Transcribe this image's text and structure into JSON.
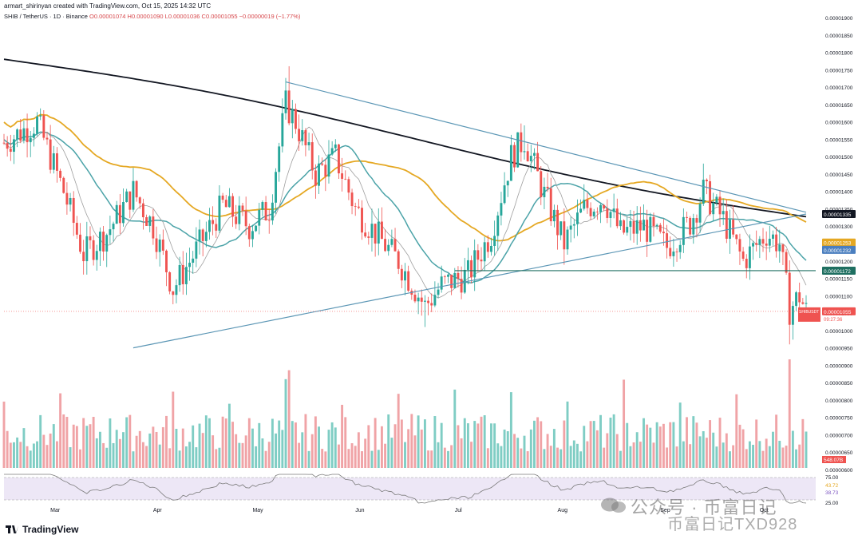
{
  "header": {
    "caption": "armart_shirinyan created with TradingView.com, Oct 15, 2025 14:32 UTC"
  },
  "legend": {
    "symbol": "SHIB / TetherUS · 1D · Binance",
    "ohlc": "O0.00001074 H0.00001090 L0.00001036 C0.00001055 −0.00000019 (−1.77%)"
  },
  "brand": {
    "name": "TradingView"
  },
  "watermark": {
    "line1": "公众号 · 币富日记",
    "line2": "币富日记TXD928"
  },
  "colors": {
    "up": "#26a69a",
    "down": "#ef5350",
    "ma200": "#131722",
    "ma100": "#e5a823",
    "ma50": "#4ba3a8",
    "ma20": "#9e9e9e",
    "trendline": "#5b96b5",
    "support": "#1f6f61",
    "price_label": "#ef5350",
    "volume_up": "#7fcdc4",
    "volume_down": "#f0a3a6"
  },
  "chart_data": {
    "type": "candlestick",
    "title": "SHIB / TetherUS · 1D · Binance",
    "y_axis": {
      "ticks": [
        "0.00001900",
        "0.00001850",
        "0.00001800",
        "0.00001750",
        "0.00001700",
        "0.00001650",
        "0.00001600",
        "0.00001550",
        "0.00001500",
        "0.00001450",
        "0.00001400",
        "0.00001350",
        "0.00001300",
        "0.00001250",
        "0.00001200",
        "0.00001150",
        "0.00001100",
        "0.00001050",
        "0.00001000",
        "0.00000950",
        "0.00000900",
        "0.00000850",
        "0.00000800",
        "0.00000750",
        "0.00000700",
        "0.00000650",
        "0.00000600"
      ],
      "ylim": [
        6e-06,
        1.9e-05
      ]
    },
    "x_axis": {
      "ticks": [
        "Mar",
        "Apr",
        "May",
        "Jun",
        "Jul",
        "Aug",
        "Sep",
        "Oct"
      ],
      "range": [
        "2025-02-15",
        "2025-10-15"
      ]
    },
    "price_labels": [
      {
        "name": "MA200",
        "value": "0.00001335",
        "color": "#131722"
      },
      {
        "name": "MA100",
        "value": "0.00001253",
        "color": "#e5a823"
      },
      {
        "name": "MA50",
        "value": "0.00001232",
        "color": "#4b7fbf"
      },
      {
        "name": "Support",
        "value": "0.00001172",
        "color": "#1f6f61"
      },
      {
        "name": "SHIBUSDT",
        "value": "0.00001055",
        "color": "#ef5350"
      }
    ],
    "countdown": "09:27:36",
    "last_price": 1.055e-05,
    "volume_label": "548.07B",
    "rsi": {
      "values_label": [
        "43.72",
        "38.73"
      ],
      "levels": [
        "75.00",
        "25.00"
      ],
      "range": [
        0,
        100
      ]
    },
    "support_level": 1.172e-05,
    "descending_trendline": [
      [
        "2025-05-11",
        1.715e-05
      ],
      [
        "2025-10-15",
        1.34e-05
      ]
    ],
    "ascending_trendline": [
      [
        "2025-03-26",
        9.5e-06
      ],
      [
        "2025-10-15",
        1.335e-05
      ]
    ],
    "key_points": {
      "may_high": 1.76e-05,
      "jun_low": 1.01e-05,
      "jul_high": 1.59e-05,
      "sep_high": 1.48e-05,
      "oct_low": 9.6e-06
    }
  }
}
